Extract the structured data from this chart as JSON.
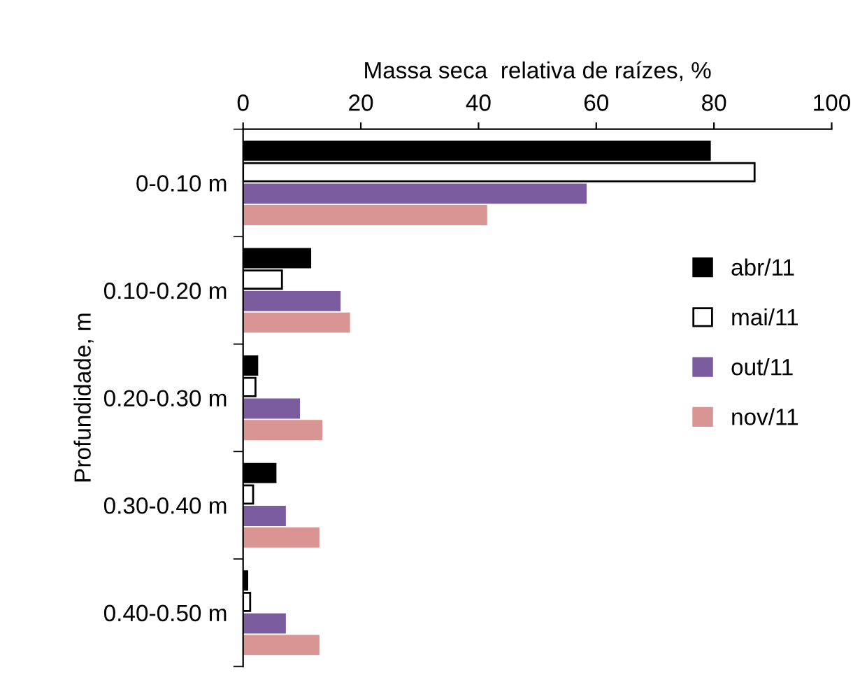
{
  "chart_data": {
    "type": "bar",
    "orientation": "horizontal",
    "xlabel": "Massa seca  relativa de raízes, %",
    "ylabel": "Profundidade, m",
    "categories": [
      "0-0.10 m",
      "0.10-0.20 m",
      "0.20-0.30 m",
      "0.30-0.40 m",
      "0.40-0.50 m"
    ],
    "series": [
      {
        "name": "abr/11",
        "color": "#000000",
        "values": [
          79.3,
          11.4,
          2.4,
          5.5,
          0.7
        ]
      },
      {
        "name": "mai/11",
        "color": "#ffffff",
        "values": [
          86.9,
          6.6,
          2.1,
          1.7,
          1.2
        ]
      },
      {
        "name": "out/11",
        "color": "#7b5c9e",
        "values": [
          58.2,
          16.4,
          9.5,
          7.1,
          7.1
        ]
      },
      {
        "name": "nov/11",
        "color": "#d99594",
        "values": [
          41.3,
          18.0,
          13.3,
          12.8,
          12.8
        ]
      }
    ],
    "xlim": [
      0,
      100
    ],
    "xticks": [
      0,
      20,
      40,
      60,
      80,
      100
    ],
    "grid": false,
    "legend": "right"
  }
}
